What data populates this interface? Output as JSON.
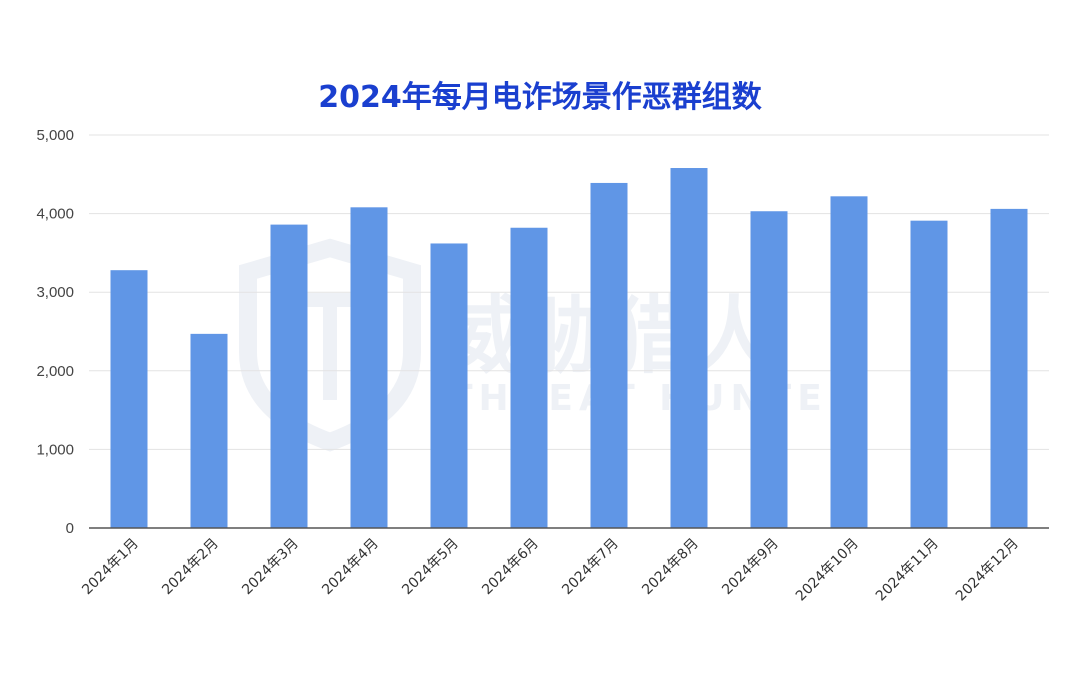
{
  "chart_data": {
    "type": "bar",
    "title": "2024年每月电诈场景作恶群组数",
    "xlabel": "",
    "ylabel": "",
    "categories": [
      "2024年1月",
      "2024年2月",
      "2024年3月",
      "2024年4月",
      "2024年5月",
      "2024年6月",
      "2024年7月",
      "2024年8月",
      "2024年9月",
      "2024年10月",
      "2024年11月",
      "2024年12月"
    ],
    "values": [
      3280,
      2470,
      3860,
      4080,
      3620,
      3820,
      4390,
      4580,
      4030,
      4220,
      3910,
      4060
    ],
    "ylim": [
      0,
      5000
    ],
    "y_ticks": [
      {
        "value": 0,
        "label": "0"
      },
      {
        "value": 1000,
        "label": "1,000"
      },
      {
        "value": 2000,
        "label": "2,000"
      },
      {
        "value": 3000,
        "label": "3,000"
      },
      {
        "value": 4000,
        "label": "4,000"
      },
      {
        "value": 5000,
        "label": "5,000"
      }
    ],
    "grid": true,
    "legend": "none",
    "bar_color": "#6096e6",
    "grid_color": "#e3e3e3",
    "axis_color": "#555555"
  },
  "watermark": {
    "cn_text": "威胁猎人",
    "en_text": "THREAT HUNTER",
    "color": "#eef1f6"
  }
}
